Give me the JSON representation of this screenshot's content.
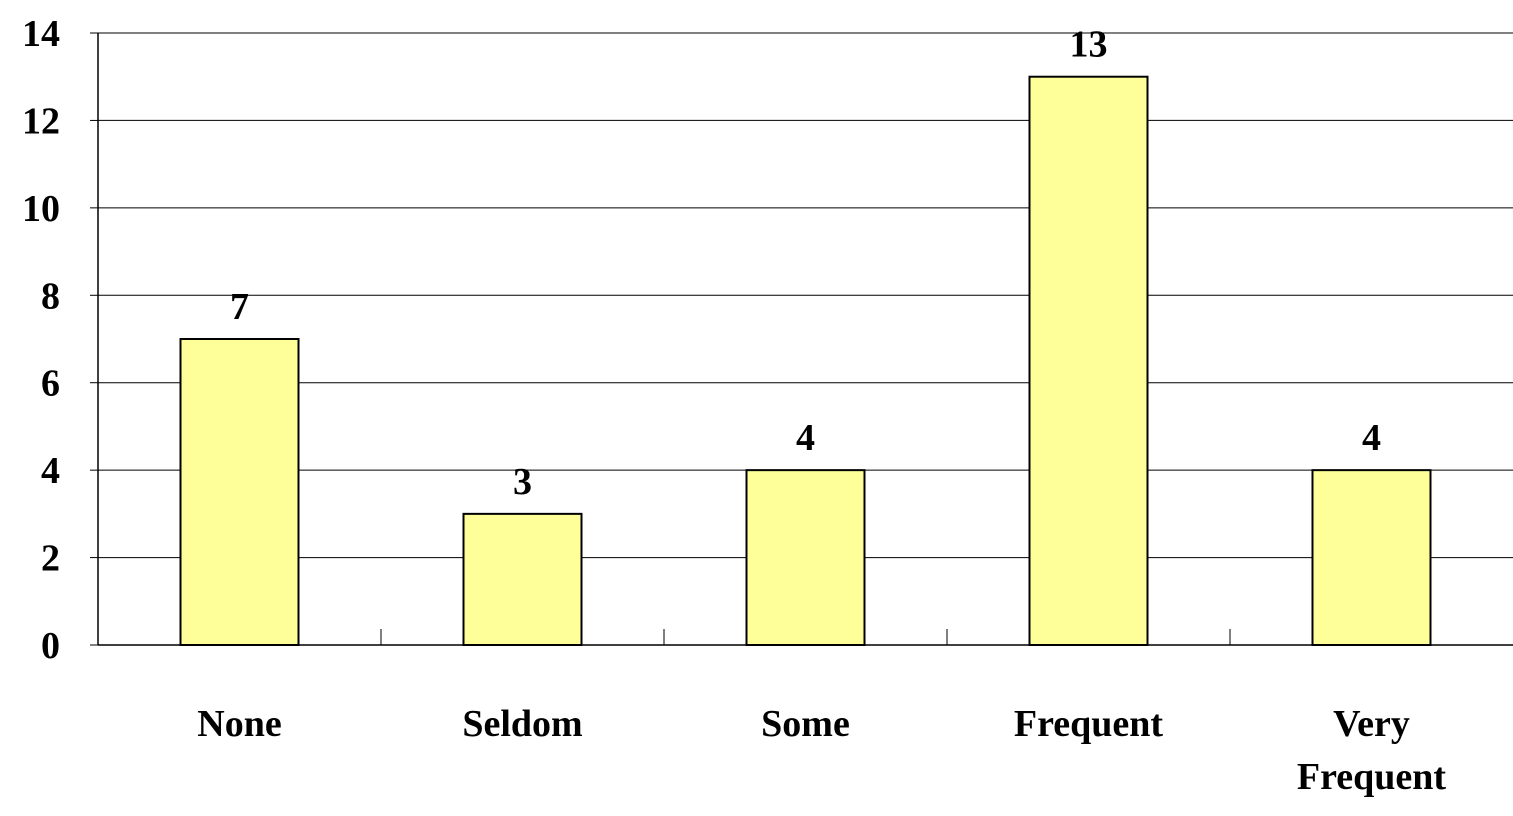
{
  "chart_data": {
    "type": "bar",
    "categories": [
      "None",
      "Seldom",
      "Some",
      "Frequent",
      "Very Frequent"
    ],
    "category_lines": [
      [
        "None"
      ],
      [
        "Seldom"
      ],
      [
        "Some"
      ],
      [
        "Frequent"
      ],
      [
        "Very",
        "Frequent"
      ]
    ],
    "values": [
      7,
      3,
      4,
      13,
      4
    ],
    "data_labels": [
      "7",
      "3",
      "4",
      "13",
      "4"
    ],
    "y_ticks": [
      "0",
      "2",
      "4",
      "6",
      "8",
      "10",
      "12",
      "14"
    ],
    "ylim": [
      0,
      14
    ],
    "grid": true,
    "legend": "none",
    "title": "",
    "xlabel": "",
    "ylabel": ""
  },
  "colors": {
    "bar_fill": "#ffff99",
    "bar_stroke": "#000000",
    "grid": "#000000",
    "text": "#000000",
    "background": "#ffffff"
  }
}
